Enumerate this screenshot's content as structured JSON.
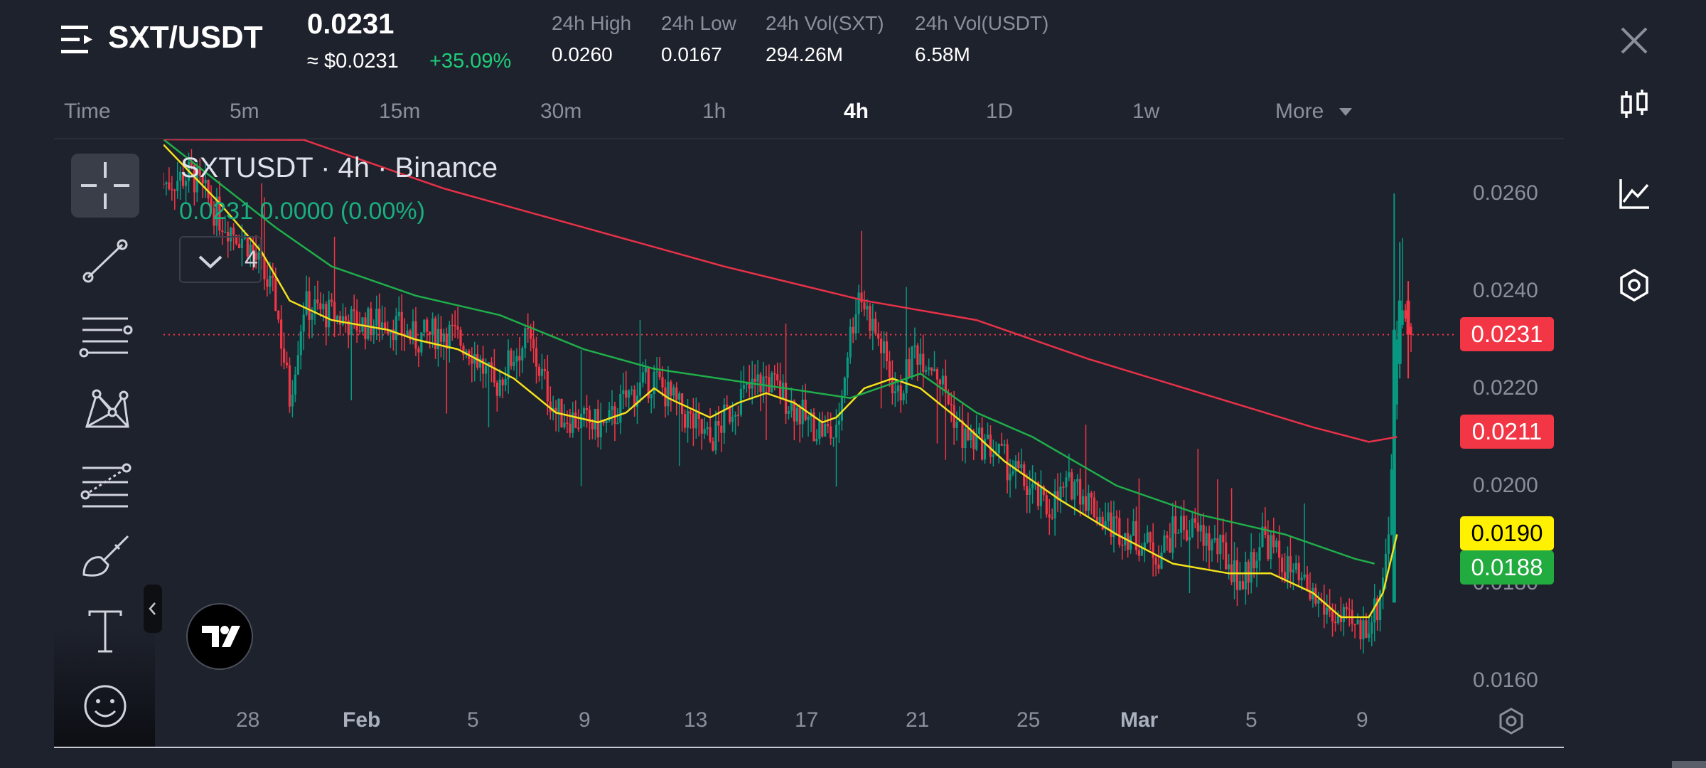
{
  "header": {
    "pair": "SXT/USDT",
    "last_price": "0.0231",
    "usd_price": "≈ $0.0231",
    "change_pct": "+35.09%",
    "stats": [
      {
        "label": "24h High",
        "value": "0.0260"
      },
      {
        "label": "24h Low",
        "value": "0.0167"
      },
      {
        "label": "24h Vol(SXT)",
        "value": "294.26M"
      },
      {
        "label": "24h Vol(USDT)",
        "value": "6.58M"
      }
    ]
  },
  "timeframes": {
    "items": [
      "Time",
      "5m",
      "15m",
      "30m",
      "1h",
      "4h",
      "1D",
      "1w",
      "More"
    ],
    "active": "4h"
  },
  "chart": {
    "title": "SXTUSDT · 4h · Binance",
    "ohlc": "0.0231  0.0000 (0.00%)",
    "indicators_count": "4",
    "colors": {
      "up": "#089981",
      "down": "#f23645",
      "ma_fast": "#f5e21b",
      "ma_mid": "#1fae4a",
      "ma_slow": "#e83148",
      "background": "#1e222d"
    }
  },
  "chart_data": {
    "type": "candlestick",
    "title": "SXTUSDT · 4h · Binance",
    "y_axis_ticks": [
      "0.0260",
      "0.0240",
      "0.0220",
      "0.0200",
      "0.0180",
      "0.0160"
    ],
    "ylim": [
      0.0158,
      0.0265
    ],
    "x_axis_ticks": [
      "28",
      "Feb",
      "5",
      "9",
      "13",
      "17",
      "21",
      "25",
      "Mar",
      "5",
      "9"
    ],
    "price_tags": [
      {
        "value": "0.0231",
        "color": "#f23645",
        "text_color": "#ffffff"
      },
      {
        "value": "0.0211",
        "color": "#f23645",
        "text_color": "#ffffff"
      },
      {
        "value": "0.0190",
        "color": "#fff100",
        "text_color": "#000000"
      },
      {
        "value": "0.0188",
        "color": "#22ab3e",
        "text_color": "#ffffff"
      }
    ],
    "current_price_line": 0.0231,
    "ma_series": [
      {
        "color": "#f5e21b",
        "points": [
          [
            0,
            0.027
          ],
          [
            20,
            0.0258
          ],
          [
            35,
            0.0248
          ],
          [
            45,
            0.0238
          ],
          [
            60,
            0.0234
          ],
          [
            80,
            0.0232
          ],
          [
            90,
            0.023
          ],
          [
            105,
            0.0228
          ],
          [
            115,
            0.0225
          ],
          [
            125,
            0.0222
          ],
          [
            140,
            0.0215
          ],
          [
            155,
            0.0213
          ],
          [
            165,
            0.0215
          ],
          [
            175,
            0.022
          ],
          [
            180,
            0.0218
          ],
          [
            195,
            0.0214
          ],
          [
            205,
            0.0217
          ],
          [
            215,
            0.0219
          ],
          [
            225,
            0.0217
          ],
          [
            235,
            0.0213
          ],
          [
            240,
            0.0214
          ],
          [
            250,
            0.022
          ],
          [
            260,
            0.0222
          ],
          [
            270,
            0.022
          ],
          [
            285,
            0.0213
          ],
          [
            300,
            0.0205
          ],
          [
            320,
            0.0197
          ],
          [
            340,
            0.019
          ],
          [
            360,
            0.0184
          ],
          [
            380,
            0.0182
          ],
          [
            395,
            0.0182
          ],
          [
            410,
            0.0178
          ],
          [
            420,
            0.0173
          ],
          [
            430,
            0.0173
          ],
          [
            435,
            0.0178
          ],
          [
            440,
            0.019
          ]
        ]
      },
      {
        "color": "#1fae4a",
        "points": [
          [
            0,
            0.028
          ],
          [
            40,
            0.0253
          ],
          [
            60,
            0.0245
          ],
          [
            90,
            0.0239
          ],
          [
            120,
            0.0235
          ],
          [
            150,
            0.0228
          ],
          [
            175,
            0.0224
          ],
          [
            210,
            0.0221
          ],
          [
            245,
            0.0218
          ],
          [
            270,
            0.0223
          ],
          [
            290,
            0.0215
          ],
          [
            310,
            0.021
          ],
          [
            340,
            0.02
          ],
          [
            370,
            0.0194
          ],
          [
            400,
            0.019
          ],
          [
            425,
            0.0185
          ],
          [
            432,
            0.0184
          ]
        ]
      },
      {
        "color": "#e83148",
        "points": [
          [
            0,
            0.0286
          ],
          [
            50,
            0.0271
          ],
          [
            100,
            0.0261
          ],
          [
            150,
            0.0253
          ],
          [
            200,
            0.0245
          ],
          [
            250,
            0.0238
          ],
          [
            290,
            0.0234
          ],
          [
            330,
            0.0226
          ],
          [
            370,
            0.0219
          ],
          [
            410,
            0.0212
          ],
          [
            430,
            0.0209
          ],
          [
            440,
            0.021
          ]
        ]
      }
    ],
    "price_path": [
      [
        0,
        0.0262
      ],
      [
        10,
        0.0264
      ],
      [
        20,
        0.0255
      ],
      [
        30,
        0.025
      ],
      [
        40,
        0.0238
      ],
      [
        45,
        0.0218
      ],
      [
        50,
        0.0237
      ],
      [
        60,
        0.0235
      ],
      [
        70,
        0.0233
      ],
      [
        80,
        0.0234
      ],
      [
        90,
        0.023
      ],
      [
        100,
        0.0232
      ],
      [
        110,
        0.0228
      ],
      [
        118,
        0.022
      ],
      [
        125,
        0.0227
      ],
      [
        130,
        0.023
      ],
      [
        140,
        0.0215
      ],
      [
        150,
        0.0213
      ],
      [
        158,
        0.0212
      ],
      [
        165,
        0.0218
      ],
      [
        175,
        0.0222
      ],
      [
        185,
        0.0215
      ],
      [
        195,
        0.0209
      ],
      [
        205,
        0.0218
      ],
      [
        215,
        0.0222
      ],
      [
        222,
        0.0218
      ],
      [
        230,
        0.0213
      ],
      [
        240,
        0.021
      ],
      [
        244,
        0.0228
      ],
      [
        248,
        0.024
      ],
      [
        255,
        0.023
      ],
      [
        262,
        0.0218
      ],
      [
        268,
        0.0228
      ],
      [
        275,
        0.0225
      ],
      [
        285,
        0.021
      ],
      [
        295,
        0.0208
      ],
      [
        305,
        0.0202
      ],
      [
        315,
        0.0195
      ],
      [
        325,
        0.0201
      ],
      [
        335,
        0.0193
      ],
      [
        345,
        0.019
      ],
      [
        355,
        0.0186
      ],
      [
        362,
        0.0192
      ],
      [
        370,
        0.019
      ],
      [
        378,
        0.0186
      ],
      [
        385,
        0.018
      ],
      [
        392,
        0.019
      ],
      [
        398,
        0.0185
      ],
      [
        405,
        0.018
      ],
      [
        412,
        0.0176
      ],
      [
        420,
        0.0172
      ],
      [
        427,
        0.017
      ],
      [
        433,
        0.0175
      ],
      [
        437,
        0.019
      ],
      [
        440,
        0.023
      ],
      [
        442,
        0.0236
      ],
      [
        445,
        0.0231
      ]
    ]
  },
  "sidebar_icons": [
    "candles-icon",
    "line-chart-icon",
    "hexagon-settings-icon"
  ],
  "toolbar_icons": [
    "crosshair-icon",
    "trend-line-icon",
    "horizontal-lines-icon",
    "pattern-icon",
    "fib-icon",
    "brush-icon",
    "text-icon",
    "emoji-icon"
  ]
}
